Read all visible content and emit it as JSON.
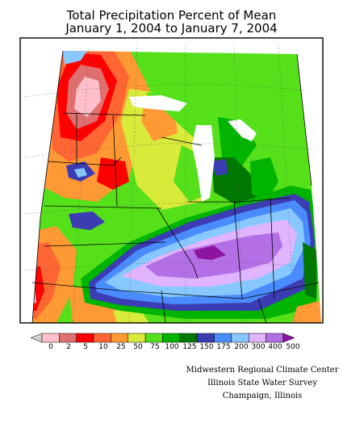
{
  "title": {
    "line1": "Total Precipitation Percent of Mean",
    "line2": "January 1, 2004 to January 7, 2004"
  },
  "legend": {
    "colors": [
      "#cfcfcf",
      "#ffc0cb",
      "#e07070",
      "#ff0000",
      "#ff6633",
      "#ff9933",
      "#d8ea3a",
      "#55e01a",
      "#00b400",
      "#007800",
      "#3c3cb4",
      "#4a8cff",
      "#87c8ff",
      "#e0b4ff",
      "#b46ee6",
      "#8c14a0"
    ],
    "labels": [
      "0",
      "2",
      "5",
      "10",
      "25",
      "50",
      "75",
      "100",
      "125",
      "150",
      "175",
      "200",
      "300",
      "400",
      "500"
    ]
  },
  "credits": {
    "line1": "Midwestern Regional Climate Center",
    "line2": "Illinois State Water Survey",
    "line3": "Champaign, Illinois"
  }
}
